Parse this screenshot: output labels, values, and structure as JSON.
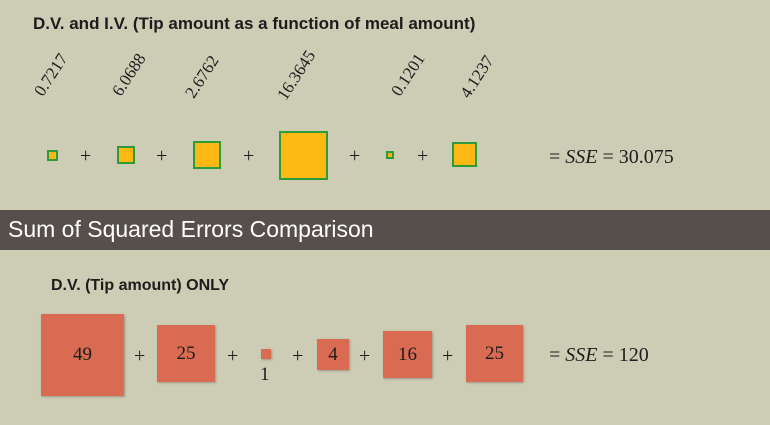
{
  "top": {
    "title": "D.V. and I.V. (Tip amount as a function of meal amount)",
    "squared_errors": [
      "0.7217",
      "6.0688",
      "2.6762",
      "16.3645",
      "0.1201",
      "4.1237"
    ],
    "operator": "+",
    "sse_prefix": "= ",
    "sse_label": "SSE",
    "sse_value": "= 30.075",
    "square_color": "#fdb813",
    "square_border": "#2f9a3c"
  },
  "banner": {
    "title": "Sum of Squared Errors Comparison",
    "color": "#574f4c"
  },
  "bottom": {
    "title": "D.V. (Tip amount) ONLY",
    "squared_errors": [
      "49",
      "25",
      "1",
      "4",
      "16",
      "25"
    ],
    "operator": "+",
    "sse_prefix": "= ",
    "sse_label": "SSE",
    "sse_value": "= 120",
    "square_color": "#d96b52"
  }
}
